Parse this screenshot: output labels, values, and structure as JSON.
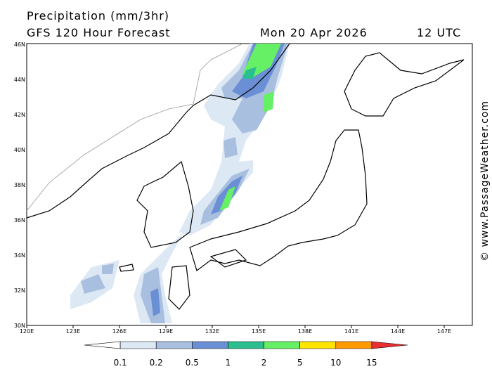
{
  "header": {
    "title": "Precipitation (mm/3hr)",
    "subtitle": "GFS 120 Hour Forecast",
    "date": "Mon 20 Apr 2026",
    "time": "12 UTC"
  },
  "map": {
    "lon_labels": [
      "120E",
      "123E",
      "126E",
      "129E",
      "132E",
      "135E",
      "138E",
      "141E",
      "144E",
      "147E"
    ],
    "lat_labels": [
      "30N",
      "32N",
      "34N",
      "36N",
      "38N",
      "40N",
      "42N",
      "44N",
      "46N"
    ]
  },
  "colorbar": {
    "levels": [
      "0.1",
      "0.2",
      "0.5",
      "1",
      "2",
      "5",
      "10",
      "15"
    ],
    "colors": [
      "#ffffff",
      "#dde8f5",
      "#a8bfe0",
      "#6b8fd4",
      "#2bbf8f",
      "#66f066",
      "#ffe600",
      "#ff9900",
      "#e83030"
    ]
  },
  "watermark": "© www.PassageWeather.com"
}
